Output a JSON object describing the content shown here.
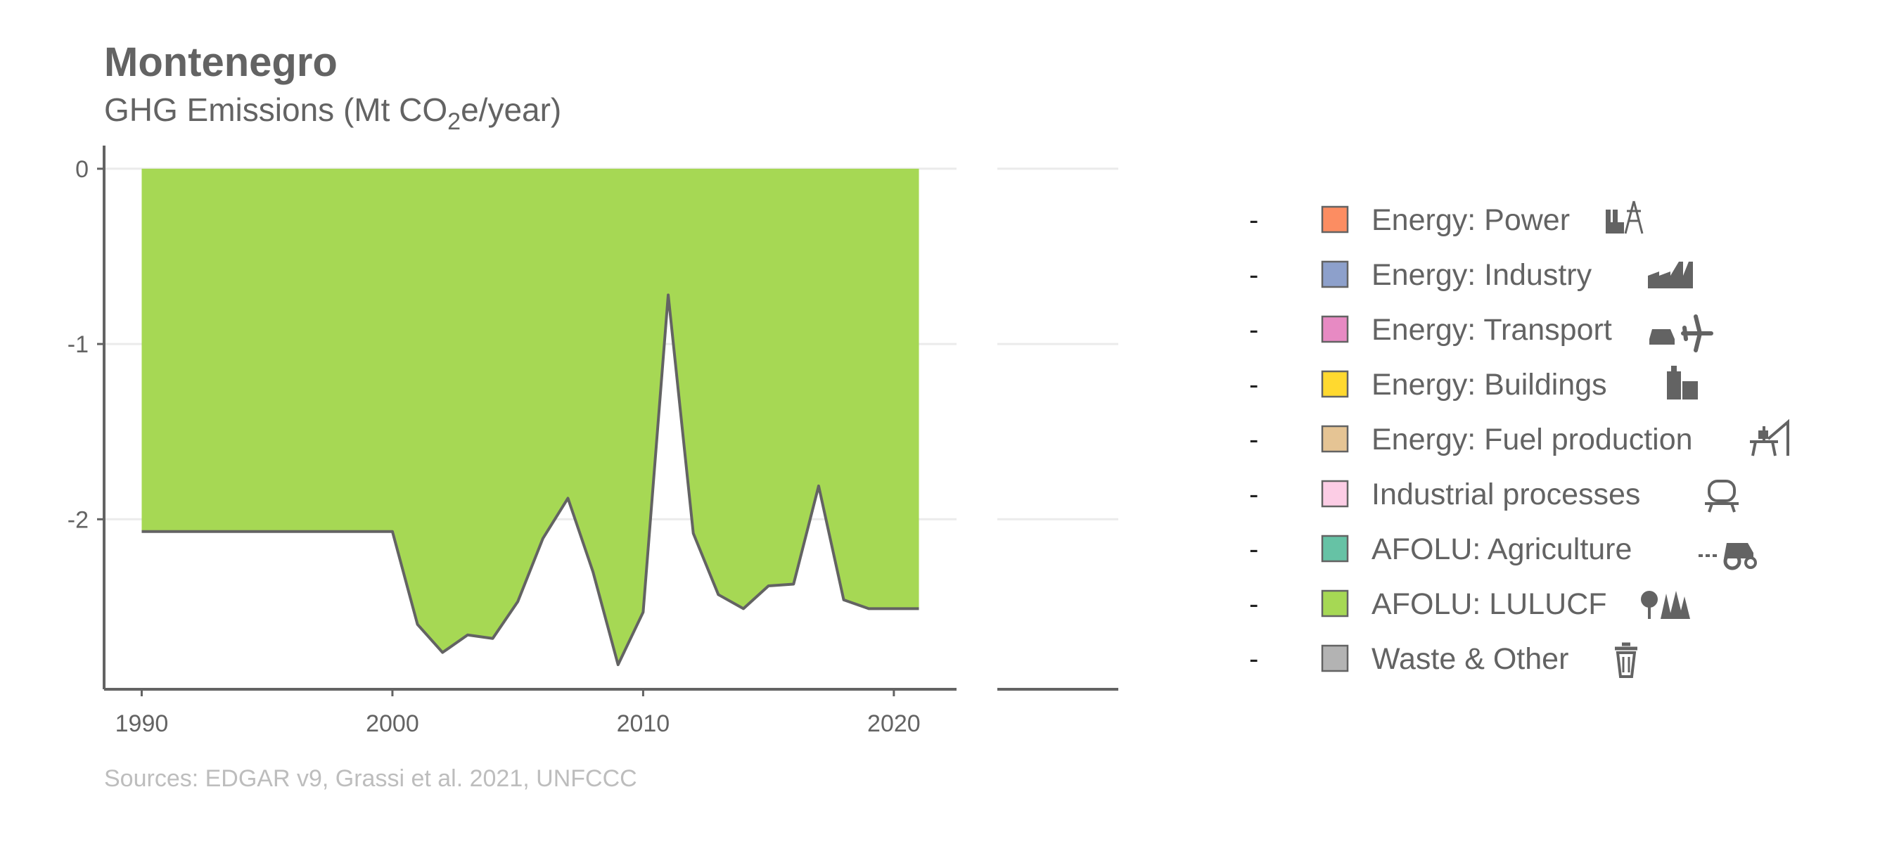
{
  "chart_data": {
    "type": "area",
    "title": "Montenegro",
    "subtitle_main": "GHG Emissions (Mt CO",
    "subtitle_sub": "2",
    "subtitle_end": "e/year)",
    "source": "Sources: EDGAR v9, Grassi et al. 2021, UNFCCC",
    "xlim": [
      1988.5,
      2022.5
    ],
    "ylim": [
      -2.97,
      0.1
    ],
    "x_ticks": [
      1990,
      2000,
      2010,
      2020
    ],
    "x_tick_labels": [
      "1990",
      "2000",
      "2010",
      "2020"
    ],
    "y_ticks": [
      0,
      -1,
      -2
    ],
    "y_tick_labels": [
      "0",
      "-1",
      "-2"
    ],
    "grid": true,
    "legend_position": "right",
    "series": [
      {
        "name": "AFOLU: LULUCF",
        "color": "#a6d854",
        "x": [
          1990,
          1991,
          1992,
          1993,
          1994,
          1995,
          1996,
          1997,
          1998,
          1999,
          2000,
          2001,
          2002,
          2003,
          2004,
          2005,
          2006,
          2007,
          2008,
          2009,
          2010,
          2011,
          2012,
          2013,
          2014,
          2015,
          2016,
          2017,
          2018,
          2019,
          2020,
          2021
        ],
        "values": [
          -2.07,
          -2.07,
          -2.07,
          -2.07,
          -2.07,
          -2.07,
          -2.07,
          -2.07,
          -2.07,
          -2.07,
          -2.07,
          -2.6,
          -2.76,
          -2.66,
          -2.68,
          -2.47,
          -2.11,
          -1.88,
          -2.3,
          -2.83,
          -2.53,
          -0.72,
          -2.08,
          -2.43,
          -2.51,
          -2.38,
          -2.37,
          -1.81,
          -2.46,
          -2.51,
          -2.51,
          -2.51
        ]
      }
    ],
    "legend": [
      {
        "label": "Energy: Power",
        "color": "#fc8d62",
        "icon": "power-plant-icon"
      },
      {
        "label": "Energy: Industry",
        "color": "#8da0cb",
        "icon": "factory-icon"
      },
      {
        "label": "Energy: Transport",
        "color": "#e78ac3",
        "icon": "car-plane-icon"
      },
      {
        "label": "Energy: Buildings",
        "color": "#ffd92f",
        "icon": "buildings-icon"
      },
      {
        "label": "Energy: Fuel production",
        "color": "#e5c494",
        "icon": "oil-rig-icon"
      },
      {
        "label": "Industrial processes",
        "color": "#fccde5",
        "icon": "cement-mixer-icon"
      },
      {
        "label": "AFOLU: Agriculture",
        "color": "#66c2a5",
        "icon": "tractor-icon"
      },
      {
        "label": "AFOLU: LULUCF",
        "color": "#a6d854",
        "icon": "trees-icon"
      },
      {
        "label": "Waste & Other",
        "color": "#b3b3b3",
        "icon": "trash-icon"
      }
    ],
    "legend_dash": "-"
  }
}
